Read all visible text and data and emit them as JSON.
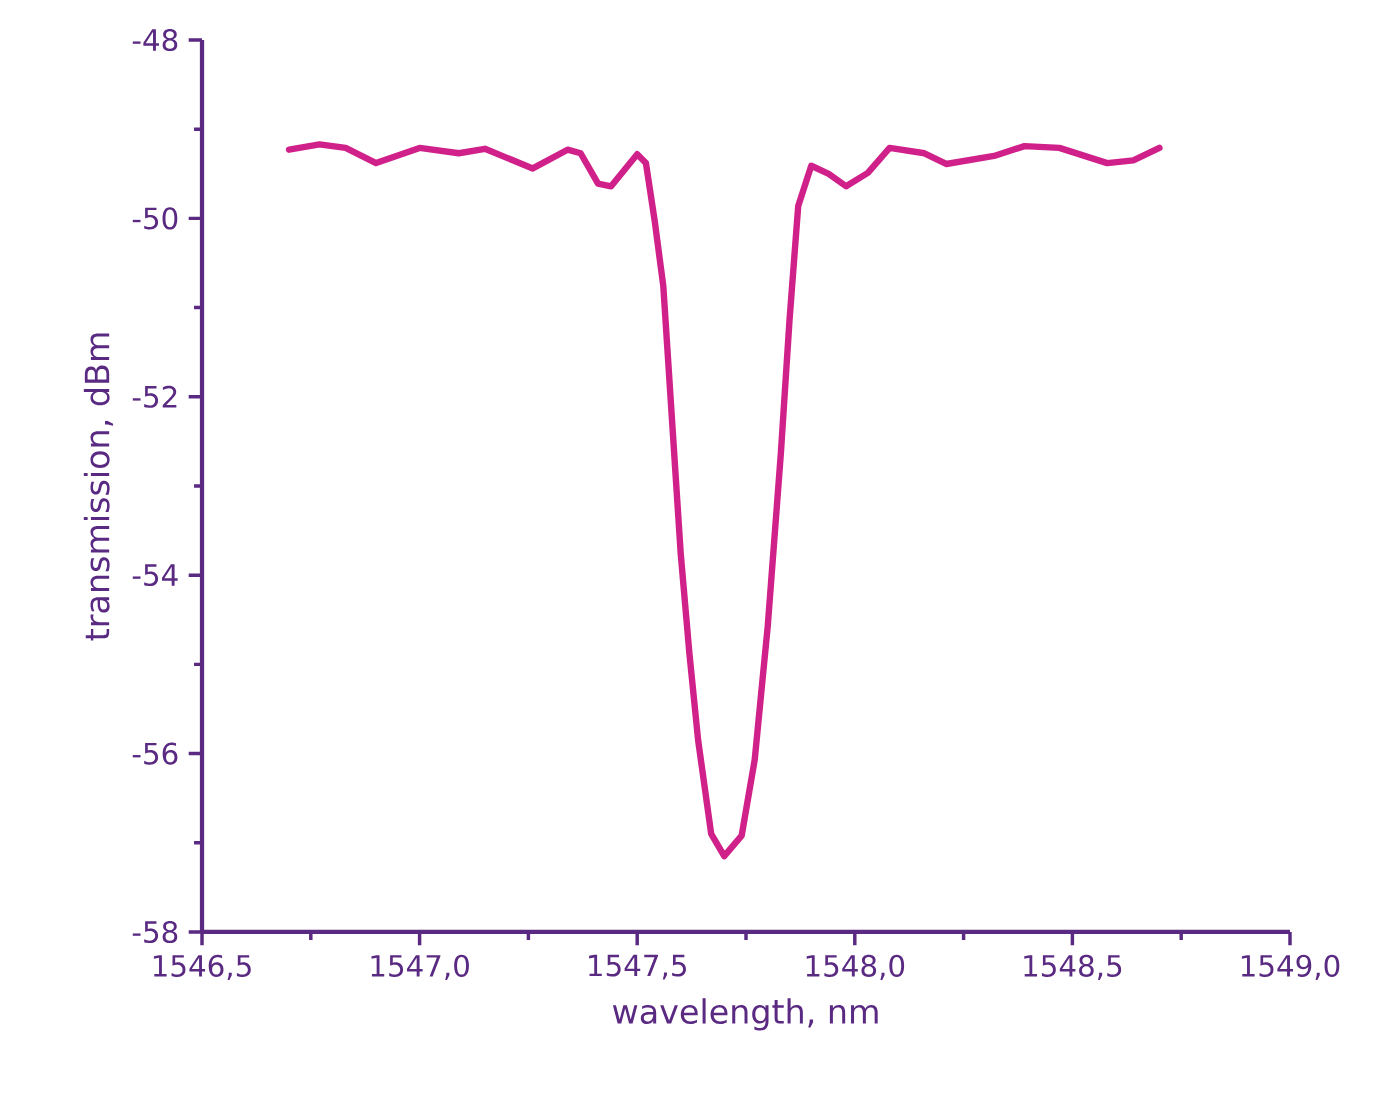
{
  "chart_data": {
    "type": "line",
    "xlabel": "wavelength, nm",
    "ylabel": "transmission, dBm",
    "xlim": [
      1546.5,
      1549.0
    ],
    "xticks": [
      {
        "value": 1546.5,
        "label": "1546,5"
      },
      {
        "value": 1547.0,
        "label": "1547,0"
      },
      {
        "value": 1547.5,
        "label": "1547,5"
      },
      {
        "value": 1548.0,
        "label": "1548,0"
      },
      {
        "value": 1548.5,
        "label": "1548,5"
      },
      {
        "value": 1549.0,
        "label": "1549,0"
      }
    ],
    "ylim": [
      -58,
      -48
    ],
    "yticks": [
      -58,
      -56,
      -54,
      -52,
      -50,
      -48
    ],
    "marker": "none",
    "line_style": "solid",
    "series": [
      {
        "color": "#d0208a",
        "x": [
          1546.7,
          1546.77,
          1546.83,
          1546.9,
          1547.0,
          1547.09,
          1547.15,
          1547.26,
          1547.34,
          1547.37,
          1547.41,
          1547.44,
          1547.5,
          1547.52,
          1547.54,
          1547.56,
          1547.58,
          1547.6,
          1547.62,
          1547.64,
          1547.67,
          1547.7,
          1547.74,
          1547.77,
          1547.8,
          1547.83,
          1547.85,
          1547.87,
          1547.9,
          1547.94,
          1547.98,
          1548.03,
          1548.08,
          1548.16,
          1548.21,
          1548.32,
          1548.39,
          1548.47,
          1548.58,
          1548.64,
          1548.7
        ],
        "values": [
          -49.23,
          -49.17,
          -49.21,
          -49.38,
          -49.21,
          -49.27,
          -49.22,
          -49.44,
          -49.23,
          -49.27,
          -49.61,
          -49.64,
          -49.28,
          -49.38,
          -50.02,
          -50.76,
          -52.26,
          -53.76,
          -54.88,
          -55.85,
          -56.9,
          -57.15,
          -56.92,
          -56.07,
          -54.57,
          -52.64,
          -51.14,
          -49.86,
          -49.41,
          -49.5,
          -49.64,
          -49.49,
          -49.21,
          -49.27,
          -49.39,
          -49.3,
          -49.19,
          -49.21,
          -49.38,
          -49.35,
          -49.21
        ]
      }
    ]
  }
}
